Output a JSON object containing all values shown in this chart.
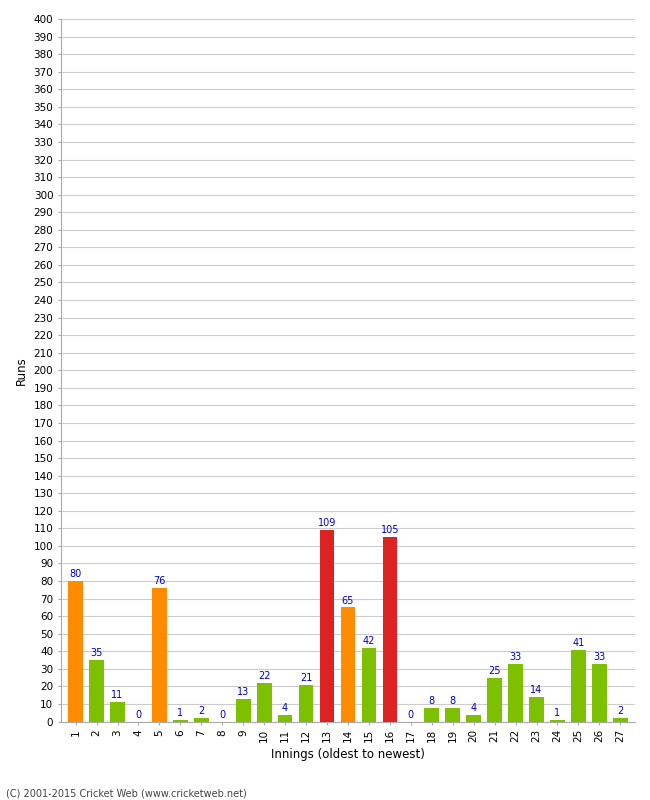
{
  "xlabel": "Innings (oldest to newest)",
  "ylabel": "Runs",
  "ylim": [
    0,
    400
  ],
  "yticks": [
    0,
    10,
    20,
    30,
    40,
    50,
    60,
    70,
    80,
    90,
    100,
    110,
    120,
    130,
    140,
    150,
    160,
    170,
    180,
    190,
    200,
    210,
    220,
    230,
    240,
    250,
    260,
    270,
    280,
    290,
    300,
    310,
    320,
    330,
    340,
    350,
    360,
    370,
    380,
    390,
    400
  ],
  "innings": [
    1,
    2,
    3,
    4,
    5,
    6,
    7,
    8,
    9,
    10,
    11,
    12,
    13,
    14,
    15,
    16,
    17,
    18,
    19,
    20,
    21,
    22,
    23,
    24,
    25,
    26,
    27
  ],
  "values": [
    80,
    35,
    11,
    0,
    76,
    1,
    2,
    0,
    13,
    22,
    4,
    21,
    109,
    65,
    42,
    105,
    0,
    8,
    8,
    4,
    25,
    33,
    14,
    1,
    41,
    33,
    2
  ],
  "colors": [
    "#ff8c00",
    "#7dc000",
    "#7dc000",
    "#7dc000",
    "#ff8c00",
    "#7dc000",
    "#7dc000",
    "#7dc000",
    "#7dc000",
    "#7dc000",
    "#7dc000",
    "#7dc000",
    "#dd2222",
    "#ff8c00",
    "#7dc000",
    "#dd2222",
    "#7dc000",
    "#7dc000",
    "#7dc000",
    "#7dc000",
    "#7dc000",
    "#7dc000",
    "#7dc000",
    "#7dc000",
    "#7dc000",
    "#7dc000",
    "#7dc000"
  ],
  "label_color": "#0000cc",
  "background_color": "#ffffff",
  "grid_color": "#cccccc",
  "footer": "(C) 2001-2015 Cricket Web (www.cricketweb.net)"
}
